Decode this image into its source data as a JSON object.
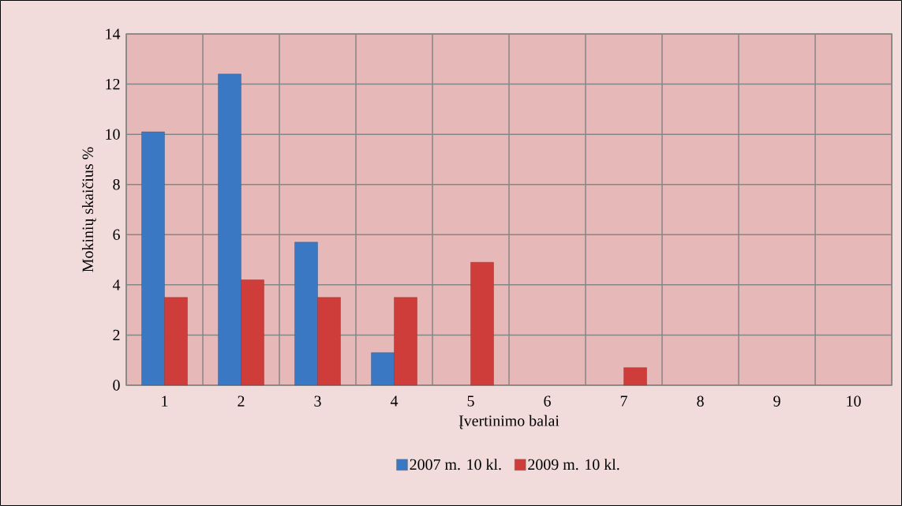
{
  "chart_data": {
    "type": "bar",
    "xlabel": "Įvertinimo balai",
    "ylabel": "Mokinių skaičius  %",
    "categories": [
      "1",
      "2",
      "3",
      "4",
      "5",
      "6",
      "7",
      "8",
      "9",
      "10"
    ],
    "series": [
      {
        "name": "2007 m. 10 kl.",
        "color": "#3b78c4",
        "values": [
          10.1,
          12.4,
          5.7,
          1.3,
          null,
          null,
          null,
          null,
          null,
          null
        ]
      },
      {
        "name": "2009 m. 10 kl.",
        "color": "#cf3d3b",
        "values": [
          3.5,
          4.2,
          3.5,
          3.5,
          4.9,
          null,
          0.7,
          null,
          null,
          null
        ]
      }
    ],
    "ylim": [
      0,
      14
    ],
    "yticks": [
      0,
      2,
      4,
      6,
      8,
      10,
      12,
      14
    ],
    "grid": true,
    "legend": "bottom"
  }
}
